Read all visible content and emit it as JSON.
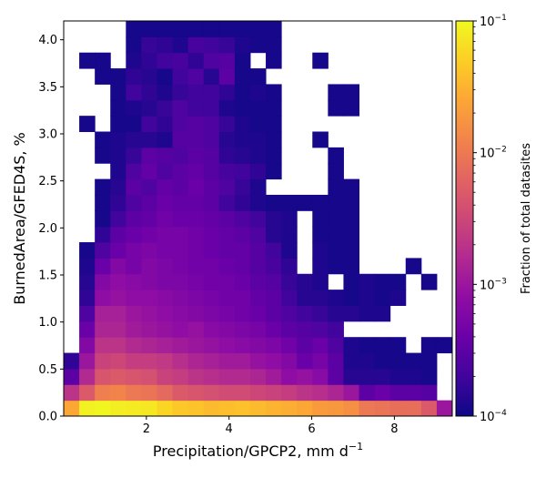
{
  "chart_data": {
    "type": "heatmap",
    "xlabel": "Precipitation/GPCP2,  mm d",
    "xlabel_sup": "−1",
    "ylabel": "BurnedArea/GFED4S,  %",
    "xlim": [
      0.0,
      9.4
    ],
    "ylim": [
      0.0,
      4.2
    ],
    "x_ticks": [
      2,
      4,
      6,
      8
    ],
    "y_ticks": [
      0.0,
      0.5,
      1.0,
      1.5,
      2.0,
      2.5,
      3.0,
      3.5,
      4.0
    ],
    "x_tick_labels": [
      "2",
      "4",
      "6",
      "8"
    ],
    "y_tick_labels": [
      "0.0",
      "0.5",
      "1.0",
      "1.5",
      "2.0",
      "2.5",
      "3.0",
      "3.5",
      "4.0"
    ],
    "x_bin_width": 0.376,
    "y_bin_width": 0.168,
    "n_x_bins": 25,
    "n_y_bins": 25,
    "colorbar": {
      "label": "Fraction of total datasites",
      "scale": "log",
      "range": [
        0.0001,
        0.1
      ],
      "colormap": "plasma",
      "tick_bases": [
        "10",
        "10",
        "10",
        "10"
      ],
      "tick_exponents": [
        "−4",
        "−3",
        "−2",
        "−1"
      ]
    },
    "grid": false,
    "log10_values_rows_bottom_to_top": [
      [
        -1.6,
        -1.05,
        -1.02,
        -1.08,
        -1.1,
        -1.12,
        -1.25,
        -1.35,
        -1.38,
        -1.45,
        -1.42,
        -1.4,
        -1.45,
        -1.5,
        -1.55,
        -1.6,
        -1.7,
        -1.72,
        -1.8,
        -2.0,
        -2.05,
        -2.1,
        -2.1,
        -2.3,
        -3.0
      ],
      [
        -2.7,
        -2.3,
        -1.95,
        -1.9,
        -2.0,
        -2.05,
        -2.15,
        -2.3,
        -2.35,
        -2.4,
        -2.45,
        -2.45,
        -2.5,
        -2.55,
        -2.6,
        -2.7,
        -2.75,
        -2.85,
        -3.0,
        -3.5,
        -3.4,
        -3.5,
        -3.5,
        -3.55,
        null
      ],
      [
        -3.5,
        -2.8,
        -2.35,
        -2.3,
        -2.35,
        -2.4,
        -2.55,
        -2.6,
        -2.7,
        -2.75,
        -2.8,
        -2.8,
        -2.85,
        -2.95,
        -3.1,
        -3.05,
        -3.15,
        -3.5,
        -3.85,
        -3.85,
        -3.85,
        -3.9,
        -3.9,
        -3.95,
        null
      ],
      [
        -3.8,
        -3.0,
        -2.55,
        -2.5,
        -2.6,
        -2.6,
        -2.65,
        -2.75,
        -2.85,
        -2.9,
        -2.95,
        -2.95,
        -3.05,
        -3.1,
        -3.2,
        -3.4,
        -3.3,
        -3.5,
        -3.9,
        -3.9,
        -3.95,
        -3.95,
        -3.95,
        -3.95,
        null
      ],
      [
        null,
        -3.2,
        -2.7,
        -2.7,
        -2.8,
        -2.85,
        -2.9,
        -2.95,
        -3.0,
        -3.05,
        -3.1,
        -3.15,
        -3.2,
        -3.25,
        -3.35,
        -3.5,
        -3.4,
        -3.6,
        -3.9,
        -3.95,
        -3.95,
        -3.95,
        null,
        -3.95,
        -3.95
      ],
      [
        null,
        -3.4,
        -2.85,
        -2.85,
        -2.95,
        -3.0,
        -3.05,
        -3.1,
        -3.05,
        -3.15,
        -3.2,
        -3.25,
        -3.3,
        -3.4,
        -3.5,
        -3.55,
        -3.6,
        -3.7,
        null,
        null,
        null,
        null,
        null,
        null,
        null
      ],
      [
        null,
        -3.6,
        -2.9,
        -2.9,
        -3.0,
        -3.05,
        -3.1,
        -3.15,
        -3.2,
        -3.25,
        -3.3,
        -3.35,
        -3.4,
        -3.5,
        -3.6,
        -3.7,
        -3.75,
        -3.85,
        -3.85,
        -3.9,
        -3.9,
        null,
        null,
        null,
        null
      ],
      [
        null,
        -3.8,
        -3.1,
        -3.05,
        -3.1,
        -3.1,
        -3.15,
        -3.2,
        -3.25,
        -3.3,
        -3.35,
        -3.35,
        -3.45,
        -3.5,
        -3.7,
        -3.85,
        -3.85,
        -3.9,
        -3.95,
        -3.9,
        -3.95,
        -3.9,
        null,
        null,
        null
      ],
      [
        null,
        -3.85,
        -3.2,
        -3.1,
        -3.15,
        -3.2,
        -3.25,
        -3.25,
        -3.3,
        -3.35,
        -3.35,
        -3.4,
        -3.5,
        -3.55,
        -3.75,
        -3.85,
        -3.9,
        null,
        -3.95,
        -3.9,
        -3.95,
        -3.95,
        null,
        -3.95,
        null
      ],
      [
        null,
        -3.9,
        -3.4,
        -3.2,
        -3.3,
        -3.2,
        -3.25,
        -3.3,
        -3.35,
        -3.35,
        -3.4,
        -3.45,
        -3.55,
        -3.65,
        -3.8,
        null,
        -3.9,
        -3.95,
        -3.95,
        null,
        null,
        null,
        -3.95,
        null,
        null
      ],
      [
        null,
        -3.95,
        -3.6,
        -3.4,
        -3.3,
        -3.25,
        -3.3,
        -3.3,
        -3.35,
        -3.4,
        -3.45,
        -3.45,
        -3.55,
        -3.7,
        -3.9,
        null,
        -3.9,
        -3.95,
        -3.95,
        null,
        null,
        null,
        null,
        null,
        null
      ],
      [
        null,
        null,
        -3.8,
        -3.5,
        -3.4,
        -3.35,
        -3.3,
        -3.3,
        -3.35,
        -3.4,
        -3.45,
        -3.5,
        -3.6,
        -3.85,
        -3.9,
        null,
        -3.95,
        -3.95,
        -3.95,
        null,
        null,
        null,
        null,
        null,
        null
      ],
      [
        null,
        null,
        -3.95,
        -3.7,
        -3.5,
        -3.45,
        -3.35,
        -3.4,
        -3.4,
        -3.45,
        -3.5,
        -3.6,
        -3.7,
        -3.85,
        -3.9,
        null,
        -3.95,
        -3.95,
        -3.95,
        null,
        null,
        null,
        null,
        null,
        null
      ],
      [
        null,
        null,
        -3.95,
        -3.8,
        -3.6,
        -3.5,
        -3.4,
        -3.45,
        -3.45,
        -3.5,
        -3.7,
        -3.8,
        -3.9,
        -3.95,
        -3.95,
        -3.95,
        -3.95,
        -3.95,
        -3.95,
        null,
        null,
        null,
        null,
        null,
        null
      ],
      [
        null,
        null,
        -3.95,
        -3.85,
        -3.5,
        -3.6,
        -3.45,
        -3.5,
        -3.4,
        -3.5,
        -3.6,
        -3.75,
        -3.9,
        null,
        null,
        null,
        null,
        -3.95,
        -3.95,
        null,
        null,
        null,
        null,
        null,
        null
      ],
      [
        null,
        null,
        null,
        -3.9,
        -3.6,
        -3.45,
        -3.6,
        -3.5,
        -3.45,
        -3.55,
        -3.65,
        -3.7,
        -3.8,
        -3.95,
        null,
        null,
        null,
        -3.95,
        null,
        null,
        null,
        null,
        null,
        null,
        null
      ],
      [
        null,
        null,
        -3.95,
        -3.9,
        -3.75,
        -3.5,
        -3.55,
        -3.6,
        -3.5,
        -3.55,
        -3.8,
        -3.85,
        -3.9,
        -3.95,
        null,
        null,
        null,
        -3.95,
        null,
        null,
        null,
        null,
        null,
        null,
        null
      ],
      [
        null,
        null,
        -3.95,
        -3.9,
        -3.85,
        -3.85,
        -3.9,
        -3.55,
        -3.55,
        -3.6,
        -3.85,
        -3.9,
        -3.9,
        -3.95,
        null,
        null,
        -3.95,
        null,
        null,
        null,
        null,
        null,
        null,
        null,
        null
      ],
      [
        null,
        -3.95,
        null,
        -3.95,
        -3.95,
        -3.7,
        -3.8,
        -3.6,
        -3.55,
        -3.6,
        -3.75,
        -3.9,
        -3.95,
        -3.95,
        null,
        null,
        null,
        null,
        null,
        null,
        null,
        null,
        null,
        null,
        null
      ],
      [
        null,
        null,
        null,
        -3.95,
        -3.9,
        -3.85,
        -3.75,
        -3.6,
        -3.7,
        -3.7,
        -3.9,
        -3.95,
        -3.95,
        -3.95,
        null,
        null,
        null,
        -3.95,
        -3.95,
        null,
        null,
        null,
        null,
        null,
        null
      ],
      [
        null,
        null,
        null,
        -3.95,
        -3.7,
        -3.8,
        -3.9,
        -3.75,
        -3.7,
        -3.7,
        -3.8,
        -3.95,
        -3.9,
        -3.95,
        null,
        null,
        null,
        -3.95,
        -3.95,
        null,
        null,
        null,
        null,
        null,
        null
      ],
      [
        null,
        null,
        -3.95,
        -3.95,
        -3.8,
        -3.85,
        -3.95,
        -3.7,
        -3.6,
        -3.85,
        -3.5,
        -3.95,
        -3.95,
        null,
        null,
        null,
        null,
        null,
        null,
        null,
        null,
        null,
        null,
        null,
        null
      ],
      [
        null,
        -3.95,
        -3.95,
        null,
        -3.9,
        -3.8,
        -3.7,
        -3.65,
        -3.8,
        -3.6,
        -3.55,
        -3.95,
        null,
        -3.95,
        null,
        null,
        -3.95,
        null,
        null,
        null,
        null,
        null,
        null,
        null,
        null
      ],
      [
        null,
        null,
        null,
        null,
        -3.95,
        -3.75,
        -3.8,
        -3.9,
        -3.65,
        -3.7,
        -3.75,
        -3.9,
        -3.95,
        -3.95,
        null,
        null,
        null,
        null,
        null,
        null,
        null,
        null,
        null,
        null,
        null
      ],
      [
        null,
        null,
        null,
        null,
        -3.95,
        -3.95,
        -3.95,
        -3.95,
        -3.95,
        -3.95,
        -3.95,
        -3.95,
        -3.95,
        -3.95,
        null,
        null,
        null,
        null,
        null,
        null,
        null,
        null,
        null,
        null,
        null
      ]
    ]
  }
}
